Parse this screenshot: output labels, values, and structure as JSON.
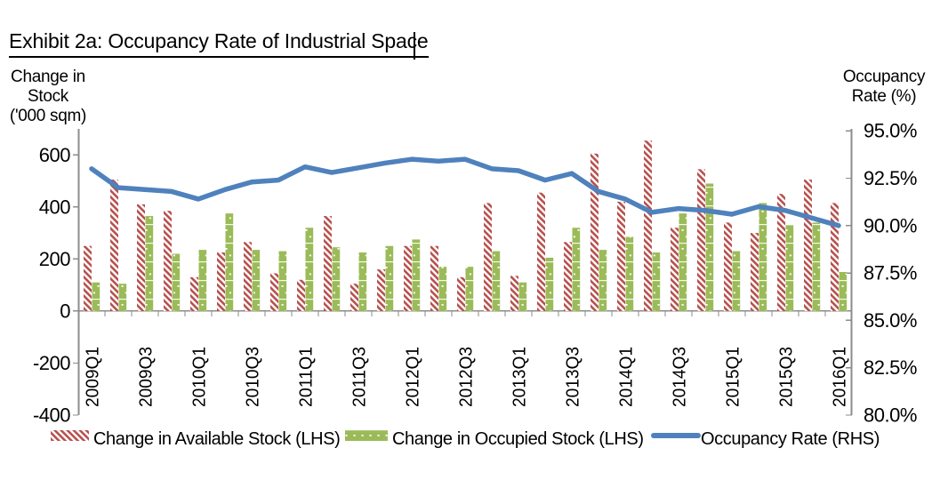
{
  "title": "Exhibit 2a: Occupancy Rate of Industrial Space",
  "left_axis": {
    "title_lines": [
      "Change in",
      "Stock",
      "('000 sqm)"
    ],
    "tick_labels": [
      "600",
      "400",
      "200",
      "0",
      "-200",
      "-400"
    ],
    "tick_values": [
      600,
      400,
      200,
      0,
      -200,
      -400
    ]
  },
  "right_axis": {
    "title_lines": [
      "Occupancy",
      "Rate (%)"
    ],
    "tick_labels": [
      "95.0%",
      "92.5%",
      "90.0%",
      "87.5%",
      "85.0%",
      "82.5%",
      "80.0%"
    ],
    "tick_values": [
      95,
      92.5,
      90,
      87.5,
      85,
      82.5,
      80
    ]
  },
  "legend": {
    "available": "Change in Available Stock (LHS)",
    "occupied": "Change in Occupied Stock (LHS)",
    "rate": "Occupancy Rate (RHS)"
  },
  "colors": {
    "available": "#b7504d",
    "occupied": "#9bbb59",
    "rate": "#4f81bd",
    "axis": "#8c8c8c",
    "text": "#000000"
  },
  "chart_data": {
    "type": "combo: bar + line",
    "title": "Exhibit 2a: Occupancy Rate of Industrial Space",
    "categories": [
      "2009Q1",
      "2009Q2",
      "2009Q3",
      "2009Q4",
      "2010Q1",
      "2010Q2",
      "2010Q3",
      "2010Q4",
      "2011Q1",
      "2011Q2",
      "2011Q3",
      "2011Q4",
      "2012Q1",
      "2012Q2",
      "2012Q3",
      "2012Q4",
      "2013Q1",
      "2013Q2",
      "2013Q3",
      "2013Q4",
      "2014Q1",
      "2014Q2",
      "2014Q3",
      "2014Q4",
      "2015Q1",
      "2015Q2",
      "2015Q3",
      "2015Q4",
      "2016Q1"
    ],
    "x_tick_labels": [
      "2009Q1",
      "2009Q3",
      "2010Q1",
      "2010Q3",
      "2011Q1",
      "2011Q3",
      "2012Q1",
      "2012Q3",
      "2013Q1",
      "2013Q3",
      "2014Q1",
      "2014Q3",
      "2015Q1",
      "2015Q3",
      "2016Q1"
    ],
    "series": [
      {
        "name": "Change in Available Stock (LHS)",
        "type": "bar",
        "axis": "left",
        "values": [
          250,
          505,
          410,
          385,
          130,
          225,
          265,
          145,
          120,
          365,
          105,
          160,
          250,
          250,
          130,
          415,
          135,
          455,
          265,
          605,
          420,
          655,
          320,
          545,
          340,
          300,
          450,
          505,
          415
        ]
      },
      {
        "name": "Change in Occupied Stock (LHS)",
        "type": "bar",
        "axis": "left",
        "values": [
          110,
          105,
          365,
          220,
          235,
          375,
          235,
          230,
          320,
          245,
          225,
          250,
          275,
          170,
          170,
          230,
          110,
          205,
          320,
          235,
          285,
          225,
          375,
          490,
          230,
          415,
          330,
          340,
          150
        ]
      },
      {
        "name": "Occupancy Rate (RHS)",
        "type": "line",
        "axis": "right",
        "values": [
          93.0,
          92.0,
          91.9,
          91.8,
          91.4,
          91.9,
          92.3,
          92.4,
          93.1,
          92.8,
          93.05,
          93.3,
          93.5,
          93.4,
          93.5,
          93.0,
          92.9,
          92.4,
          92.75,
          91.8,
          91.4,
          90.7,
          90.9,
          90.8,
          90.6,
          91.0,
          90.8,
          90.4,
          90.0
        ]
      }
    ],
    "left_axis_label": "Change in Stock ('000 sqm)",
    "right_axis_label": "Occupancy Rate (%)",
    "left_axis_range": [
      -400,
      700
    ],
    "right_axis_range": [
      80,
      95
    ],
    "grid": false,
    "legend_position": "bottom"
  }
}
